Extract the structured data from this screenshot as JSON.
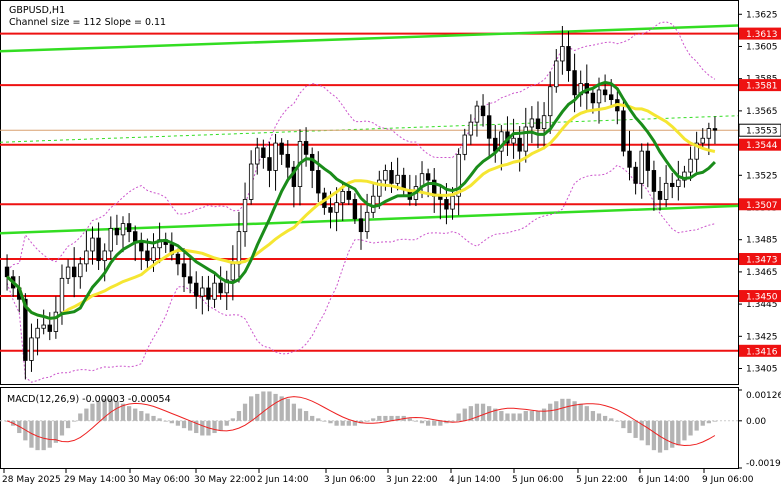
{
  "chart_data": [
    {
      "type": "candlestick",
      "title": "GBPUSD,H1",
      "subtitle": "Channel size = 112 Slope = 0.11",
      "current_price": "1.3553",
      "y_ticks": [
        "1.3625",
        "1.3605",
        "1.3585",
        "1.3565",
        "1.3545",
        "1.3525",
        "1.3505",
        "1.3485",
        "1.3465",
        "1.3445",
        "1.3425",
        "1.3405"
      ],
      "x_ticks": [
        "28 May 2025",
        "29 May 14:00",
        "30 May 06:00",
        "30 May 22:00",
        "2 Jun 14:00",
        "3 Jun 06:00",
        "3 Jun 22:00",
        "4 Jun 14:00",
        "5 Jun 06:00",
        "5 Jun 22:00",
        "6 Jun 14:00",
        "9 Jun 06:00"
      ],
      "ylim": [
        1.3396,
        1.3632
      ],
      "levels": [
        {
          "value": 1.3613,
          "label": "1.3613"
        },
        {
          "value": 1.3581,
          "label": "1.3581"
        },
        {
          "value": 1.3544,
          "label": "1.3544"
        },
        {
          "value": 1.3507,
          "label": "1.3507"
        },
        {
          "value": 1.3473,
          "label": "1.3473"
        },
        {
          "value": 1.345,
          "label": "1.3450"
        },
        {
          "value": 1.3416,
          "label": "1.3416"
        }
      ],
      "channel": {
        "upper": [
          1.3602,
          1.3618
        ],
        "lower": [
          1.3489,
          1.3506
        ]
      },
      "close": [
        1.3462,
        1.3455,
        1.3448,
        1.341,
        1.3424,
        1.343,
        1.3432,
        1.3428,
        1.344,
        1.3461,
        1.3468,
        1.3462,
        1.347,
        1.3478,
        1.3486,
        1.3472,
        1.3478,
        1.3492,
        1.3488,
        1.3495,
        1.349,
        1.3484,
        1.3478,
        1.3472,
        1.348,
        1.3485,
        1.3482,
        1.3476,
        1.347,
        1.3462,
        1.3458,
        1.345,
        1.3455,
        1.3448,
        1.3458,
        1.3452,
        1.346,
        1.347,
        1.349,
        1.351,
        1.3532,
        1.3542,
        1.3536,
        1.3528,
        1.3545,
        1.3538,
        1.353,
        1.3518,
        1.3546,
        1.3538,
        1.3528,
        1.3514,
        1.3505,
        1.3502,
        1.3508,
        1.3515,
        1.351,
        1.3498,
        1.349,
        1.3502,
        1.3512,
        1.3522,
        1.3528,
        1.352,
        1.3525,
        1.3516,
        1.351,
        1.3518,
        1.3526,
        1.3522,
        1.3512,
        1.351,
        1.3504,
        1.3512,
        1.3538,
        1.355,
        1.3558,
        1.3568,
        1.3562,
        1.3548,
        1.354,
        1.3552,
        1.3545,
        1.3548,
        1.354,
        1.3555,
        1.356,
        1.3554,
        1.3562,
        1.358,
        1.3596,
        1.3605,
        1.359,
        1.3575,
        1.3582,
        1.3576,
        1.357,
        1.3578,
        1.3575,
        1.3572,
        1.3565,
        1.354,
        1.353,
        1.352,
        1.354,
        1.3528,
        1.3515,
        1.351,
        1.352,
        1.3518,
        1.3522,
        1.3527,
        1.3535,
        1.3545,
        1.3548,
        1.3554,
        1.3553
      ],
      "ma_green": "moving average (green)",
      "ma_yellow": "moving average (yellow)"
    },
    {
      "type": "bar",
      "title": "MACD(12,26,9) -0.00003 -0.00054",
      "y_ticks": [
        "0.00126",
        "0.00",
        "-0.00193"
      ],
      "ylim": [
        -0.00193,
        0.00126
      ],
      "histogram": [
        0.0,
        -0.0002,
        -0.0005,
        -0.0008,
        -0.0011,
        -0.0012,
        -0.0012,
        -0.0011,
        -0.0009,
        -0.0006,
        -0.0003,
        0.0,
        0.0003,
        0.0005,
        0.0007,
        0.0008,
        0.0009,
        0.0009,
        0.0008,
        0.0007,
        0.0006,
        0.0005,
        0.0004,
        0.0003,
        0.0002,
        0.0001,
        0.0,
        -0.0001,
        -0.0002,
        -0.0003,
        -0.0004,
        -0.0005,
        -0.0006,
        -0.0006,
        -0.0005,
        -0.0004,
        -0.0002,
        0.0001,
        0.0004,
        0.0007,
        0.001,
        0.0011,
        0.0012,
        0.0012,
        0.0011,
        0.001,
        0.0009,
        0.0007,
        0.0005,
        0.0004,
        0.0002,
        0.0001,
        0.0,
        -0.0001,
        -0.0002,
        -0.0002,
        -0.0002,
        -0.0002,
        -0.0001,
        0.0,
        0.0001,
        0.0002,
        0.0002,
        0.0002,
        0.0002,
        0.0002,
        0.0001,
        0.0,
        -0.0001,
        -0.0002,
        -0.0002,
        -0.0002,
        -0.0001,
        0.0,
        0.0003,
        0.0005,
        0.0006,
        0.0007,
        0.0007,
        0.0006,
        0.0005,
        0.0004,
        0.0003,
        0.0003,
        0.0003,
        0.0004,
        0.0004,
        0.0004,
        0.0005,
        0.0007,
        0.0008,
        0.0009,
        0.0009,
        0.0008,
        0.0007,
        0.0006,
        0.0004,
        0.0003,
        0.0002,
        0.0001,
        0.0,
        -0.0003,
        -0.0005,
        -0.0007,
        -0.0008,
        -0.001,
        -0.0012,
        -0.0013,
        -0.0012,
        -0.0011,
        -0.001,
        -0.0008,
        -0.0006,
        -0.0004,
        -0.0002,
        -0.0001,
        0.0
      ]
    }
  ]
}
